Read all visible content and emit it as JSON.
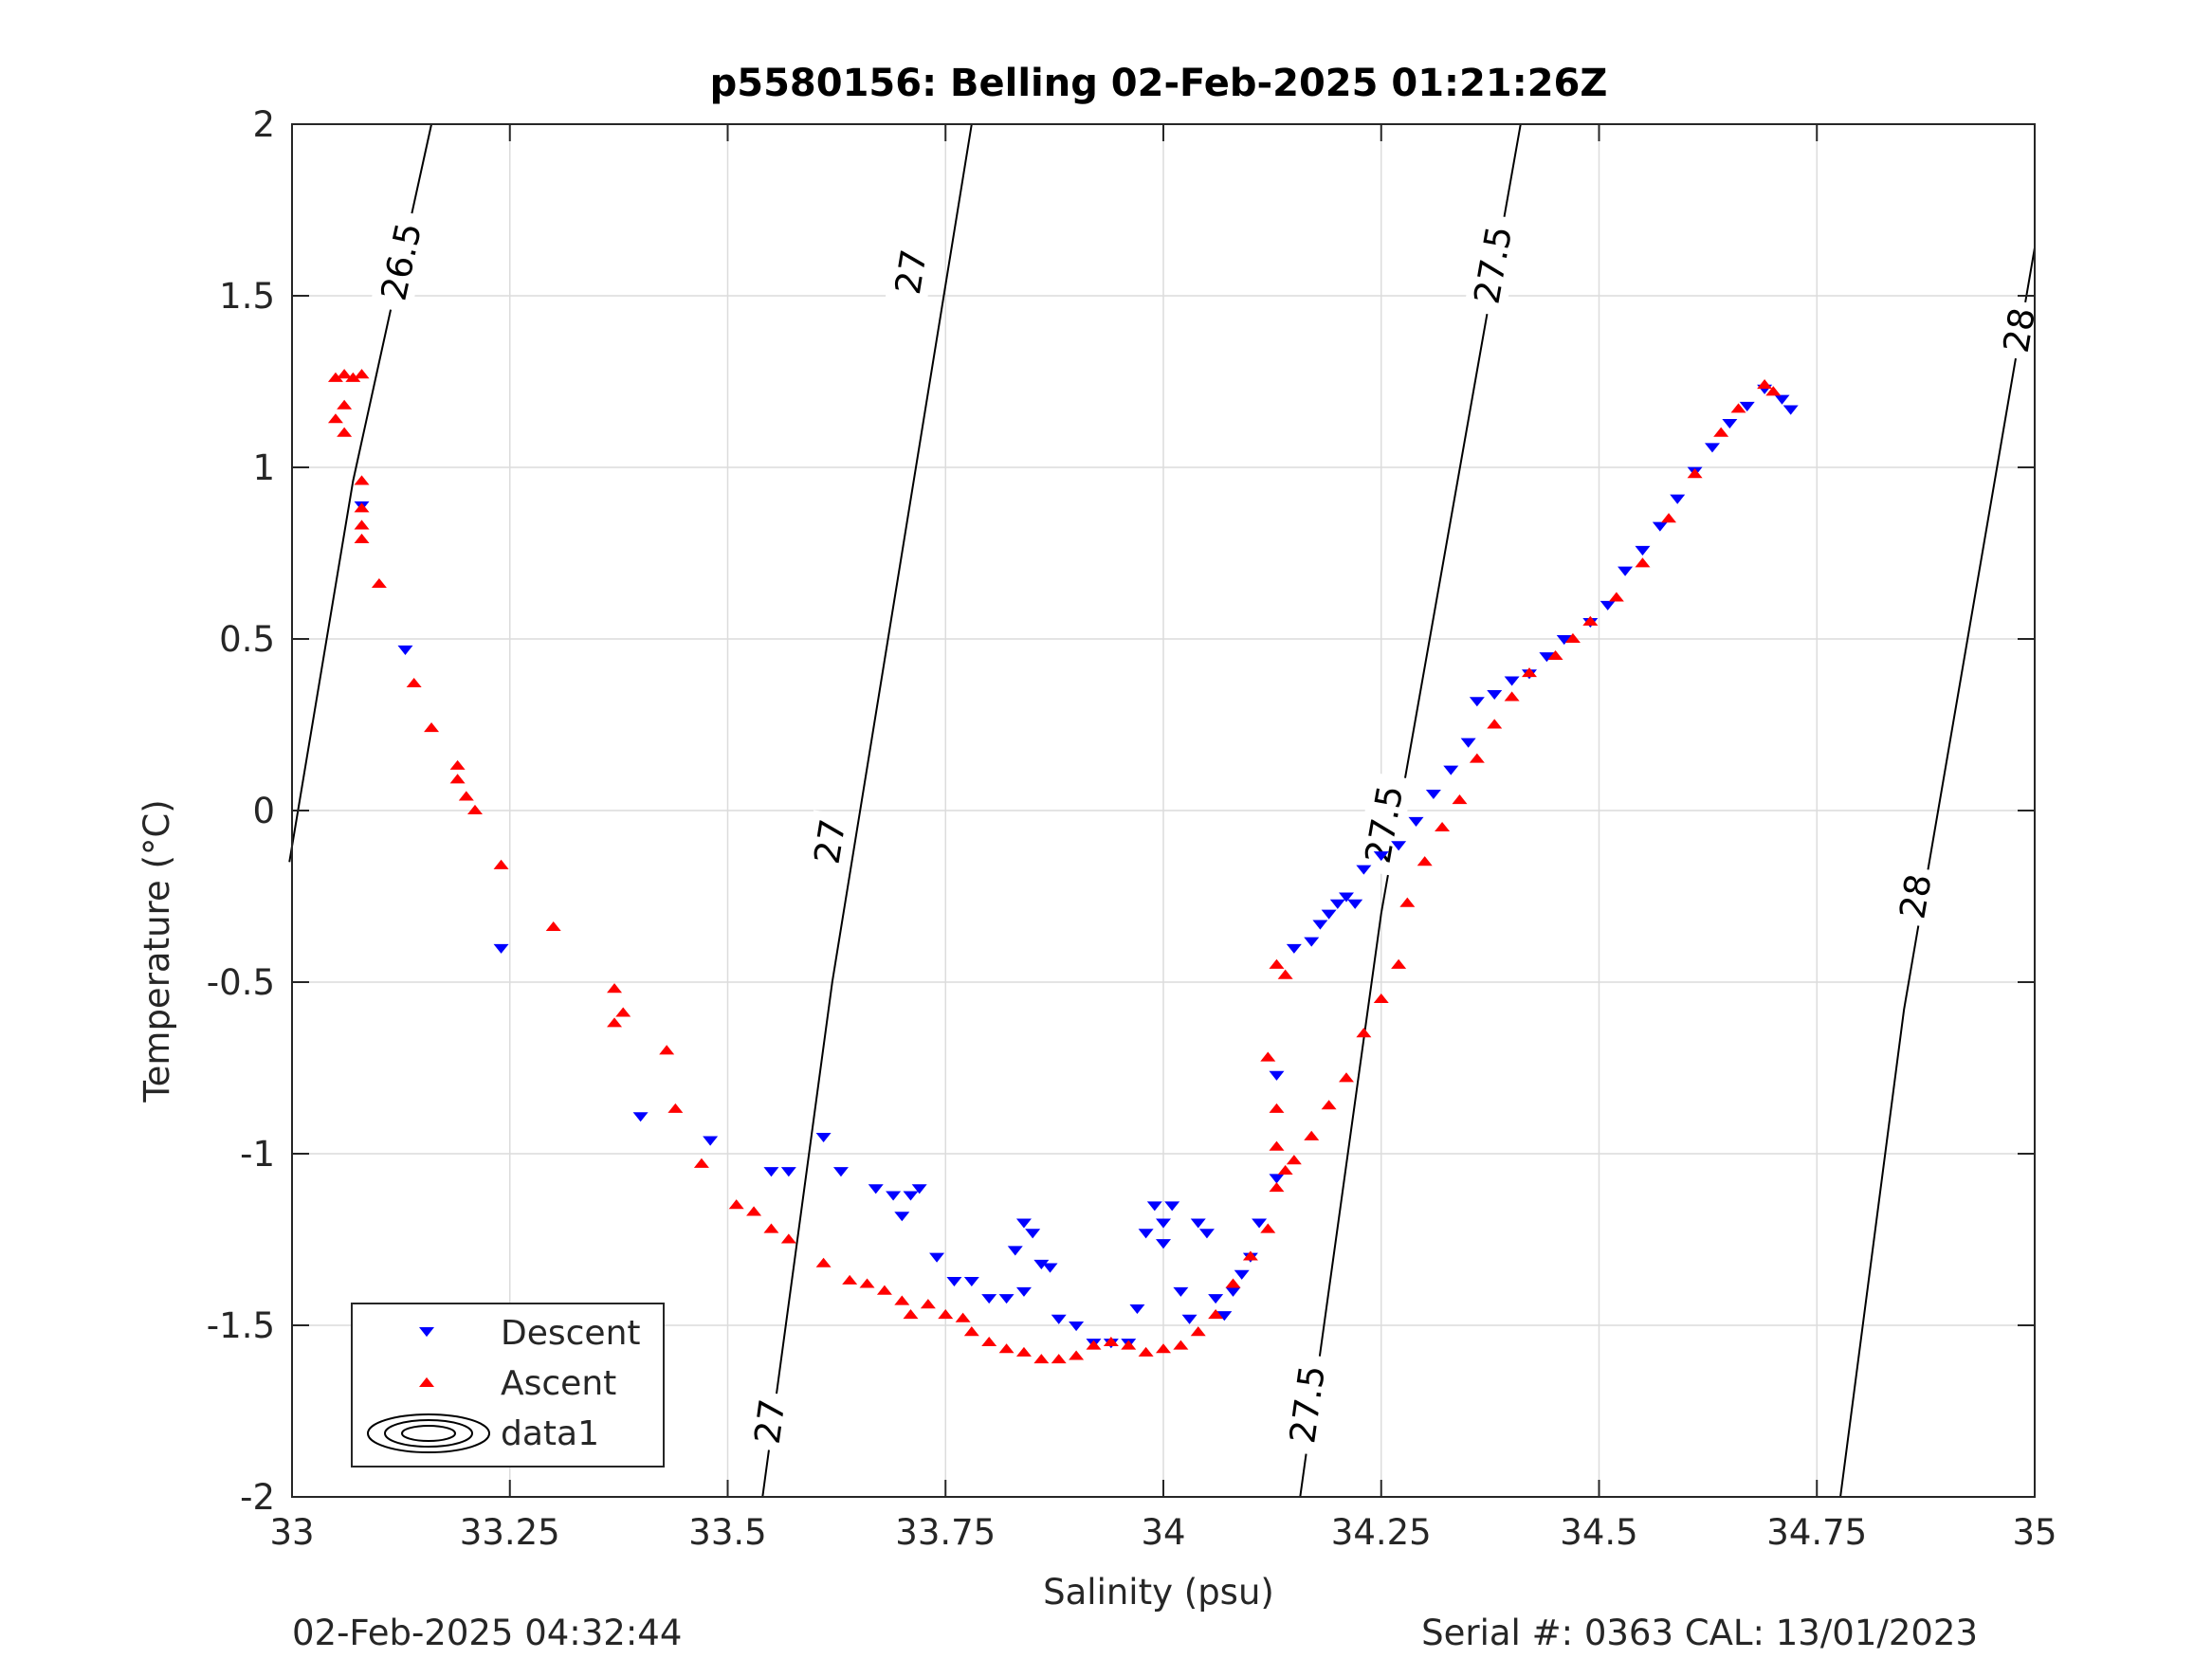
{
  "chart_data": {
    "type": "scatter",
    "title": "p5580156: Belling 02-Feb-2025 01:21:26Z",
    "xlabel": "Salinity (psu)",
    "ylabel": "Temperature (°C)",
    "xlim": [
      33,
      35
    ],
    "ylim": [
      -2,
      2
    ],
    "x_ticks": [
      33,
      33.25,
      33.5,
      33.75,
      34,
      34.25,
      34.5,
      34.75,
      35
    ],
    "x_tick_labels": [
      "33",
      "33.25",
      "33.5",
      "33.75",
      "34",
      "34.25",
      "34.5",
      "34.75",
      "35"
    ],
    "y_ticks": [
      -2,
      -1.5,
      -1,
      -0.5,
      0,
      0.5,
      1,
      1.5,
      2
    ],
    "y_tick_labels": [
      "-2",
      "-1.5",
      "-1",
      "-0.5",
      "0",
      "0.5",
      "1",
      "1.5",
      "2"
    ],
    "grid": true,
    "legend_position": "bottom-left",
    "footer_left": "02-Feb-2025 04:32:44",
    "footer_right": "Serial #: 0363  CAL: 13/01/2023",
    "series": [
      {
        "name": "Descent",
        "marker": "triangle-down",
        "color": "#0000ff",
        "points": [
          [
            33.08,
            0.89
          ],
          [
            33.13,
            0.47
          ],
          [
            33.24,
            -0.4
          ],
          [
            33.4,
            -0.89
          ],
          [
            33.48,
            -0.96
          ],
          [
            33.55,
            -1.05
          ],
          [
            33.57,
            -1.05
          ],
          [
            33.61,
            -0.95
          ],
          [
            33.63,
            -1.05
          ],
          [
            33.67,
            -1.1
          ],
          [
            33.69,
            -1.12
          ],
          [
            33.71,
            -1.12
          ],
          [
            33.72,
            -1.1
          ],
          [
            33.7,
            -1.18
          ],
          [
            33.74,
            -1.3
          ],
          [
            33.76,
            -1.37
          ],
          [
            33.78,
            -1.37
          ],
          [
            33.8,
            -1.42
          ],
          [
            33.82,
            -1.42
          ],
          [
            33.84,
            -1.4
          ],
          [
            33.83,
            -1.28
          ],
          [
            33.84,
            -1.2
          ],
          [
            33.85,
            -1.23
          ],
          [
            33.86,
            -1.32
          ],
          [
            33.87,
            -1.33
          ],
          [
            33.88,
            -1.48
          ],
          [
            33.9,
            -1.5
          ],
          [
            33.92,
            -1.55
          ],
          [
            33.94,
            -1.55
          ],
          [
            33.96,
            -1.55
          ],
          [
            33.97,
            -1.45
          ],
          [
            33.98,
            -1.23
          ],
          [
            33.99,
            -1.15
          ],
          [
            34.0,
            -1.2
          ],
          [
            34.0,
            -1.26
          ],
          [
            34.01,
            -1.15
          ],
          [
            34.02,
            -1.4
          ],
          [
            34.03,
            -1.48
          ],
          [
            34.04,
            -1.2
          ],
          [
            34.05,
            -1.23
          ],
          [
            34.06,
            -1.42
          ],
          [
            34.07,
            -1.47
          ],
          [
            34.08,
            -1.4
          ],
          [
            34.09,
            -1.35
          ],
          [
            34.1,
            -1.3
          ],
          [
            34.11,
            -1.2
          ],
          [
            34.13,
            -1.07
          ],
          [
            34.13,
            -0.77
          ],
          [
            34.15,
            -0.4
          ],
          [
            34.17,
            -0.38
          ],
          [
            34.18,
            -0.33
          ],
          [
            34.19,
            -0.3
          ],
          [
            34.2,
            -0.27
          ],
          [
            34.21,
            -0.25
          ],
          [
            34.22,
            -0.27
          ],
          [
            34.23,
            -0.17
          ],
          [
            34.25,
            -0.13
          ],
          [
            34.27,
            -0.1
          ],
          [
            34.29,
            -0.03
          ],
          [
            34.31,
            0.05
          ],
          [
            34.33,
            0.12
          ],
          [
            34.35,
            0.2
          ],
          [
            34.36,
            0.32
          ],
          [
            34.38,
            0.34
          ],
          [
            34.4,
            0.38
          ],
          [
            34.42,
            0.4
          ],
          [
            34.44,
            0.45
          ],
          [
            34.46,
            0.5
          ],
          [
            34.49,
            0.55
          ],
          [
            34.51,
            0.6
          ],
          [
            34.53,
            0.7
          ],
          [
            34.55,
            0.76
          ],
          [
            34.57,
            0.83
          ],
          [
            34.59,
            0.91
          ],
          [
            34.61,
            0.99
          ],
          [
            34.63,
            1.06
          ],
          [
            34.65,
            1.13
          ],
          [
            34.67,
            1.18
          ],
          [
            34.69,
            1.23
          ],
          [
            34.71,
            1.2
          ],
          [
            34.72,
            1.17
          ]
        ]
      },
      {
        "name": "Ascent",
        "marker": "triangle-up",
        "color": "#ff0000",
        "points": [
          [
            33.05,
            1.26
          ],
          [
            33.06,
            1.27
          ],
          [
            33.07,
            1.26
          ],
          [
            33.08,
            1.27
          ],
          [
            33.06,
            1.18
          ],
          [
            33.05,
            1.14
          ],
          [
            33.06,
            1.1
          ],
          [
            33.08,
            0.96
          ],
          [
            33.08,
            0.88
          ],
          [
            33.08,
            0.83
          ],
          [
            33.08,
            0.79
          ],
          [
            33.1,
            0.66
          ],
          [
            33.14,
            0.37
          ],
          [
            33.16,
            0.24
          ],
          [
            33.19,
            0.13
          ],
          [
            33.19,
            0.09
          ],
          [
            33.2,
            0.04
          ],
          [
            33.21,
            0.0
          ],
          [
            33.24,
            -0.16
          ],
          [
            33.3,
            -0.34
          ],
          [
            33.37,
            -0.52
          ],
          [
            33.37,
            -0.62
          ],
          [
            33.38,
            -0.59
          ],
          [
            33.43,
            -0.7
          ],
          [
            33.44,
            -0.87
          ],
          [
            33.47,
            -1.03
          ],
          [
            33.51,
            -1.15
          ],
          [
            33.53,
            -1.17
          ],
          [
            33.55,
            -1.22
          ],
          [
            33.57,
            -1.25
          ],
          [
            33.61,
            -1.32
          ],
          [
            33.64,
            -1.37
          ],
          [
            33.66,
            -1.38
          ],
          [
            33.68,
            -1.4
          ],
          [
            33.7,
            -1.43
          ],
          [
            33.71,
            -1.47
          ],
          [
            33.73,
            -1.44
          ],
          [
            33.75,
            -1.47
          ],
          [
            33.77,
            -1.48
          ],
          [
            33.78,
            -1.52
          ],
          [
            33.8,
            -1.55
          ],
          [
            33.82,
            -1.57
          ],
          [
            33.84,
            -1.58
          ],
          [
            33.86,
            -1.6
          ],
          [
            33.88,
            -1.6
          ],
          [
            33.9,
            -1.59
          ],
          [
            33.92,
            -1.56
          ],
          [
            33.94,
            -1.55
          ],
          [
            33.96,
            -1.56
          ],
          [
            33.98,
            -1.58
          ],
          [
            34.0,
            -1.57
          ],
          [
            34.02,
            -1.56
          ],
          [
            34.04,
            -1.52
          ],
          [
            34.06,
            -1.47
          ],
          [
            34.08,
            -1.38
          ],
          [
            34.1,
            -1.3
          ],
          [
            34.12,
            -1.22
          ],
          [
            34.13,
            -1.1
          ],
          [
            34.14,
            -1.05
          ],
          [
            34.15,
            -1.02
          ],
          [
            34.13,
            -0.45
          ],
          [
            34.14,
            -0.48
          ],
          [
            34.12,
            -0.72
          ],
          [
            34.13,
            -0.87
          ],
          [
            34.13,
            -0.98
          ],
          [
            34.17,
            -0.95
          ],
          [
            34.19,
            -0.86
          ],
          [
            34.21,
            -0.78
          ],
          [
            34.23,
            -0.65
          ],
          [
            34.25,
            -0.55
          ],
          [
            34.27,
            -0.45
          ],
          [
            34.28,
            -0.27
          ],
          [
            34.3,
            -0.15
          ],
          [
            34.32,
            -0.05
          ],
          [
            34.34,
            0.03
          ],
          [
            34.36,
            0.15
          ],
          [
            34.38,
            0.25
          ],
          [
            34.4,
            0.33
          ],
          [
            34.42,
            0.4
          ],
          [
            34.45,
            0.45
          ],
          [
            34.47,
            0.5
          ],
          [
            34.49,
            0.55
          ],
          [
            34.52,
            0.62
          ],
          [
            34.55,
            0.72
          ],
          [
            34.58,
            0.85
          ],
          [
            34.61,
            0.98
          ],
          [
            34.64,
            1.1
          ],
          [
            34.66,
            1.17
          ],
          [
            34.69,
            1.24
          ],
          [
            34.7,
            1.22
          ]
        ]
      }
    ],
    "contours": [
      {
        "label": "26.5",
        "points": [
          [
            32.997,
            -0.15
          ],
          [
            33.07,
            0.96
          ],
          [
            33.16,
            2.0
          ]
        ],
        "labels_at": [
          [
            33.125,
            1.6
          ]
        ]
      },
      {
        "label": "27",
        "points": [
          [
            33.54,
            -2.0
          ],
          [
            33.62,
            -0.5
          ],
          [
            33.78,
            2.0
          ]
        ],
        "labels_at": [
          [
            33.71,
            1.57
          ],
          [
            33.617,
            -0.09
          ],
          [
            33.548,
            -1.78
          ]
        ]
      },
      {
        "label": "27.5",
        "points": [
          [
            34.157,
            -2.0
          ],
          [
            34.25,
            -0.3
          ],
          [
            34.41,
            2.0
          ]
        ],
        "labels_at": [
          [
            34.378,
            1.59
          ],
          [
            34.253,
            -0.04
          ],
          [
            34.165,
            -1.73
          ]
        ]
      },
      {
        "label": "28",
        "points": [
          [
            34.777,
            -2.0
          ],
          [
            34.85,
            -0.58
          ],
          [
            35.0,
            1.64
          ]
        ],
        "labels_at": [
          [
            34.982,
            1.4
          ],
          [
            34.863,
            -0.25
          ]
        ]
      }
    ],
    "legend": {
      "entries": [
        {
          "label": "Descent",
          "marker": "triangle-down",
          "color": "#0000ff"
        },
        {
          "label": "Ascent",
          "marker": "triangle-up",
          "color": "#ff0000"
        },
        {
          "label": "data1",
          "marker": "contour-ellipses",
          "color": "#000000"
        }
      ]
    }
  }
}
